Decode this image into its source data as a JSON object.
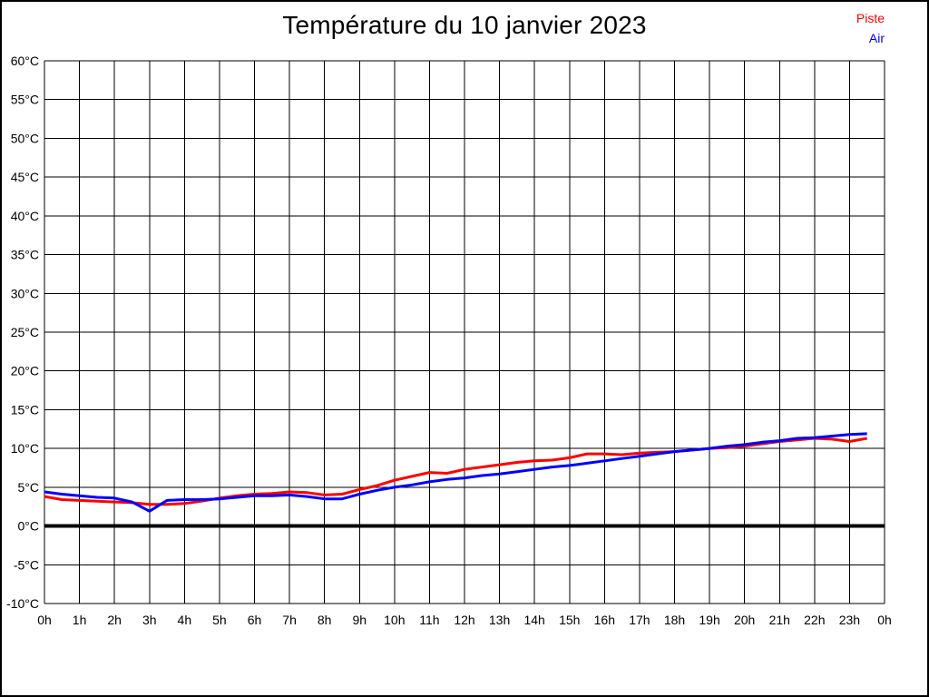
{
  "chart": {
    "title": "Température du 10 janvier 2023"
  },
  "legend": {
    "items": [
      {
        "label": "Piste",
        "color": "#ff0000"
      },
      {
        "label": "Air",
        "color": "#0000ff"
      }
    ]
  },
  "chart_data": {
    "type": "line",
    "title": "Température du 10 janvier 2023",
    "xlabel": "",
    "ylabel": "",
    "x_unit": "hour of day",
    "y_unit": "°C",
    "xlim": [
      0,
      24
    ],
    "ylim": [
      -10,
      60
    ],
    "grid": true,
    "zero_line_bold": true,
    "legend_position": "top-right",
    "x_ticks": [
      0,
      1,
      2,
      3,
      4,
      5,
      6,
      7,
      8,
      9,
      10,
      11,
      12,
      13,
      14,
      15,
      16,
      17,
      18,
      19,
      20,
      21,
      22,
      23,
      24
    ],
    "x_tick_labels": [
      "0h",
      "1h",
      "2h",
      "3h",
      "4h",
      "5h",
      "6h",
      "7h",
      "8h",
      "9h",
      "10h",
      "11h",
      "12h",
      "13h",
      "14h",
      "15h",
      "16h",
      "17h",
      "18h",
      "19h",
      "20h",
      "21h",
      "22h",
      "23h",
      "0h"
    ],
    "y_ticks": [
      60,
      55,
      50,
      45,
      40,
      35,
      30,
      25,
      20,
      15,
      10,
      5,
      0,
      -5,
      -10
    ],
    "y_tick_labels": [
      "60°C",
      "55°C",
      "50°C",
      "45°C",
      "40°C",
      "35°C",
      "30°C",
      "25°C",
      "20°C",
      "15°C",
      "10°C",
      "5°C",
      "0°C",
      "-5°C",
      "-10°C"
    ],
    "series": [
      {
        "name": "Piste",
        "color": "#ff0000",
        "x": [
          0,
          0.5,
          1,
          1.5,
          2,
          2.5,
          3,
          3.5,
          4,
          4.5,
          5,
          5.5,
          6,
          6.5,
          7,
          7.5,
          8,
          8.5,
          9,
          9.5,
          10,
          10.5,
          11,
          11.5,
          12,
          12.5,
          13,
          13.5,
          14,
          14.5,
          15,
          15.5,
          16,
          16.5,
          17,
          17.5,
          18,
          18.5,
          19,
          19.5,
          20,
          20.5,
          21,
          21.5,
          22,
          22.5,
          23,
          23.5
        ],
        "y": [
          3.8,
          3.4,
          3.3,
          3.2,
          3.1,
          3.0,
          2.8,
          2.8,
          2.9,
          3.2,
          3.6,
          3.9,
          4.1,
          4.2,
          4.4,
          4.3,
          4.0,
          4.1,
          4.7,
          5.2,
          5.9,
          6.4,
          6.9,
          6.8,
          7.3,
          7.6,
          7.9,
          8.2,
          8.4,
          8.5,
          8.8,
          9.3,
          9.3,
          9.2,
          9.4,
          9.5,
          9.6,
          9.8,
          10.0,
          10.1,
          10.3,
          10.6,
          10.9,
          11.1,
          11.3,
          11.2,
          10.9,
          11.3
        ]
      },
      {
        "name": "Air",
        "color": "#0000ff",
        "x": [
          0,
          0.5,
          1,
          1.5,
          2,
          2.5,
          3,
          3.5,
          4,
          4.5,
          5,
          5.5,
          6,
          6.5,
          7,
          7.5,
          8,
          8.5,
          9,
          9.5,
          10,
          10.5,
          11,
          11.5,
          12,
          12.5,
          13,
          13.5,
          14,
          14.5,
          15,
          15.5,
          16,
          16.5,
          17,
          17.5,
          18,
          18.5,
          19,
          19.5,
          20,
          20.5,
          21,
          21.5,
          22,
          22.5,
          23,
          23.5
        ],
        "y": [
          4.4,
          4.1,
          3.9,
          3.7,
          3.6,
          3.1,
          1.9,
          3.3,
          3.4,
          3.4,
          3.5,
          3.7,
          3.9,
          3.9,
          4.0,
          3.8,
          3.5,
          3.5,
          4.1,
          4.6,
          5.0,
          5.3,
          5.7,
          6.0,
          6.2,
          6.5,
          6.7,
          7.0,
          7.3,
          7.6,
          7.8,
          8.1,
          8.4,
          8.7,
          9.0,
          9.3,
          9.6,
          9.8,
          10.0,
          10.3,
          10.5,
          10.8,
          11.0,
          11.3,
          11.4,
          11.6,
          11.8,
          11.9
        ]
      }
    ]
  }
}
